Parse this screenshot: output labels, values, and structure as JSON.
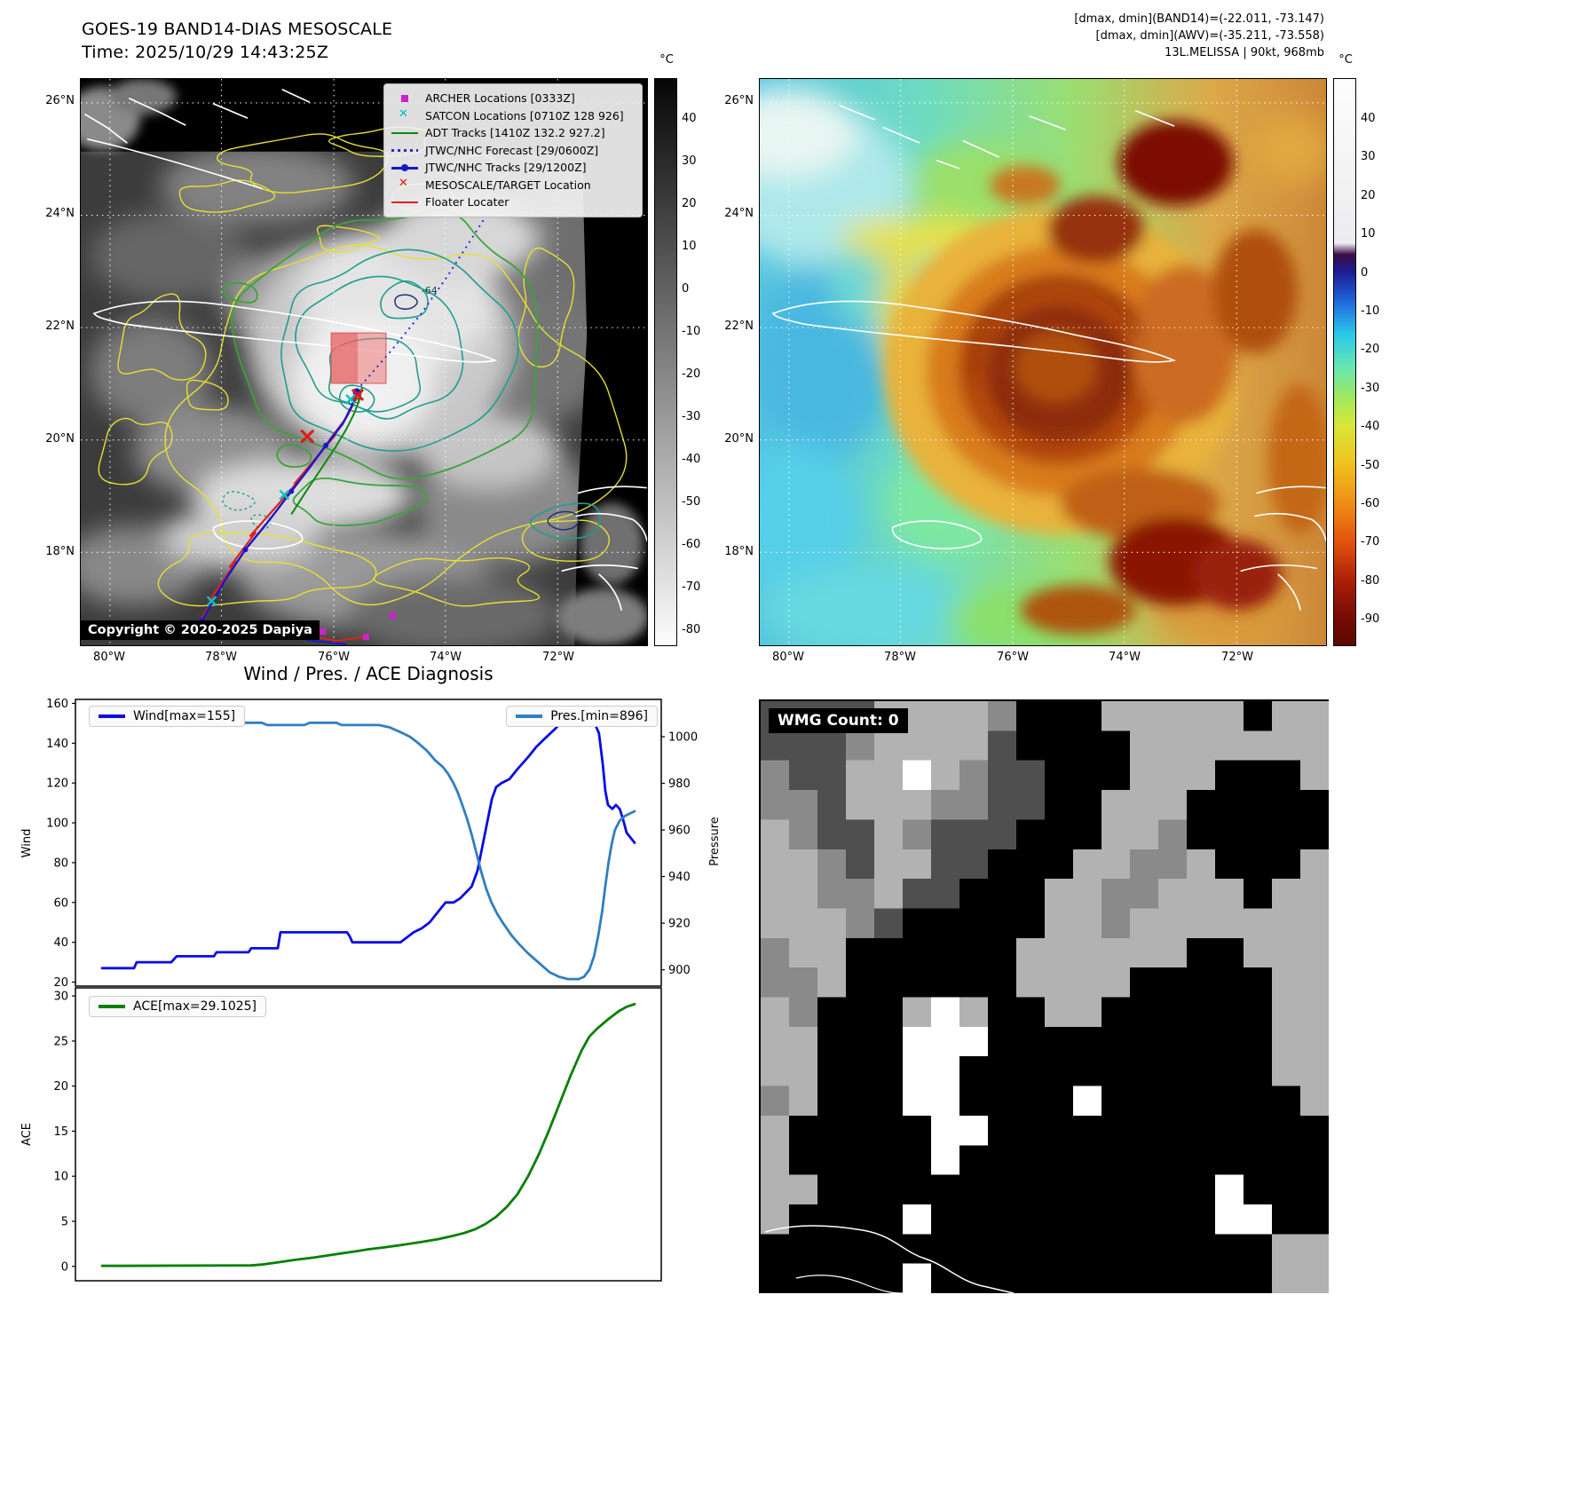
{
  "panel1": {
    "title": "GOES-19 BAND14-DIAS MESOSCALE",
    "subtitle": "Time: 2025/10/29 14:43:25Z",
    "copyright": "Copyright © 2020-2025 Dapiya",
    "colorbar_unit": "°C",
    "colorbar_ticks": [
      40,
      30,
      20,
      10,
      0,
      -10,
      -20,
      -30,
      -40,
      -50,
      -60,
      -70,
      -80
    ],
    "lat_labels": [
      "26°N",
      "24°N",
      "22°N",
      "20°N",
      "18°N"
    ],
    "lon_labels": [
      "80°W",
      "78°W",
      "76°W",
      "74°W",
      "72°W"
    ],
    "contour_label": "-64",
    "legend": [
      {
        "label": "ARCHER Locations [0333Z]",
        "marker": "magenta-square"
      },
      {
        "label": "SATCON Locations [0710Z 128 926]",
        "marker": "cyan-x"
      },
      {
        "label": "ADT Tracks [1410Z 132.2 927.2]",
        "marker": "green-line"
      },
      {
        "label": "JTWC/NHC Forecast [29/0600Z]",
        "marker": "blue-dotted"
      },
      {
        "label": "JTWC/NHC Tracks [29/1200Z]",
        "marker": "blue-line-dot"
      },
      {
        "label": "MESOSCALE/TARGET Location",
        "marker": "red-x"
      },
      {
        "label": "Floater Locater",
        "marker": "red-line"
      }
    ]
  },
  "panel2": {
    "header_line1": "[dmax, dmin](BAND14)=(-22.011, -73.147)",
    "header_line2": "[dmax, dmin](AWV)=(-35.211, -73.558)",
    "header_line3": "13L.MELISSA | 90kt, 968mb",
    "colorbar_unit": "°C",
    "colorbar_ticks": [
      40,
      30,
      20,
      10,
      0,
      -10,
      -20,
      -30,
      -40,
      -50,
      -60,
      -70,
      -80,
      -90
    ],
    "lat_labels": [
      "26°N",
      "24°N",
      "22°N",
      "20°N",
      "18°N"
    ],
    "lon_labels": [
      "80°W",
      "78°W",
      "76°W",
      "74°W",
      "72°W"
    ]
  },
  "charts": {
    "title": "Wind / Pres. / ACE Diagnosis"
  },
  "chart_data": [
    {
      "type": "line",
      "title": "Wind / Pres. / ACE Diagnosis",
      "ylabel_left": "Wind",
      "ylabel_right": "Pressure",
      "ylim_left": [
        18,
        162
      ],
      "ylim_right": [
        893,
        1016
      ],
      "yticks_left": [
        160,
        140,
        120,
        100,
        80,
        60,
        40,
        20
      ],
      "yticks_right": [
        1000,
        980,
        960,
        940,
        920,
        900
      ],
      "xlim": [
        -0.05,
        1.05
      ],
      "grid": false,
      "legend_position": "upper-left / upper-right",
      "series": [
        {
          "name": "Wind[max=155]",
          "color": "#0a0ae6",
          "axis": "left",
          "points": [
            [
              0,
              27
            ],
            [
              0.06,
              27
            ],
            [
              0.065,
              30
            ],
            [
              0.13,
              30
            ],
            [
              0.14,
              33
            ],
            [
              0.21,
              33
            ],
            [
              0.215,
              35
            ],
            [
              0.275,
              35
            ],
            [
              0.28,
              37
            ],
            [
              0.33,
              37
            ],
            [
              0.335,
              45
            ],
            [
              0.46,
              45
            ],
            [
              0.465,
              43
            ],
            [
              0.47,
              40
            ],
            [
              0.56,
              40
            ],
            [
              0.57,
              42
            ],
            [
              0.585,
              45
            ],
            [
              0.6,
              47
            ],
            [
              0.615,
              50
            ],
            [
              0.63,
              55
            ],
            [
              0.645,
              60
            ],
            [
              0.66,
              60
            ],
            [
              0.672,
              62
            ],
            [
              0.683,
              65
            ],
            [
              0.694,
              68
            ],
            [
              0.705,
              76
            ],
            [
              0.714,
              88
            ],
            [
              0.723,
              100
            ],
            [
              0.732,
              112
            ],
            [
              0.74,
              118
            ],
            [
              0.75,
              120
            ],
            [
              0.765,
              122
            ],
            [
              0.78,
              127
            ],
            [
              0.8,
              133
            ],
            [
              0.815,
              138
            ],
            [
              0.83,
              142
            ],
            [
              0.85,
              147
            ],
            [
              0.868,
              152
            ],
            [
              0.885,
              155
            ],
            [
              0.9,
              155
            ],
            [
              0.912,
              152
            ],
            [
              0.925,
              150
            ],
            [
              0.933,
              145
            ],
            [
              0.94,
              130
            ],
            [
              0.945,
              116
            ],
            [
              0.95,
              109
            ],
            [
              0.958,
              107
            ],
            [
              0.965,
              109
            ],
            [
              0.972,
              107
            ],
            [
              0.978,
              102
            ],
            [
              0.985,
              95
            ],
            [
              1,
              90
            ]
          ]
        },
        {
          "name": "Pres.[min=896]",
          "color": "#2f7fc1",
          "axis": "right",
          "points": [
            [
              0,
              1009
            ],
            [
              0.1,
              1009
            ],
            [
              0.105,
              1008
            ],
            [
              0.22,
              1008
            ],
            [
              0.225,
              1006
            ],
            [
              0.3,
              1006
            ],
            [
              0.31,
              1005
            ],
            [
              0.38,
              1005
            ],
            [
              0.39,
              1006
            ],
            [
              0.44,
              1006
            ],
            [
              0.45,
              1005
            ],
            [
              0.52,
              1005
            ],
            [
              0.54,
              1004
            ],
            [
              0.56,
              1002
            ],
            [
              0.578,
              1000
            ],
            [
              0.595,
              997
            ],
            [
              0.61,
              994
            ],
            [
              0.625,
              990
            ],
            [
              0.64,
              987
            ],
            [
              0.65,
              984
            ],
            [
              0.66,
              980
            ],
            [
              0.668,
              976
            ],
            [
              0.676,
              971
            ],
            [
              0.685,
              965
            ],
            [
              0.694,
              958
            ],
            [
              0.703,
              950
            ],
            [
              0.712,
              942
            ],
            [
              0.721,
              935
            ],
            [
              0.731,
              929
            ],
            [
              0.742,
              924
            ],
            [
              0.753,
              920
            ],
            [
              0.768,
              915
            ],
            [
              0.783,
              911
            ],
            [
              0.8,
              907
            ],
            [
              0.82,
              903
            ],
            [
              0.84,
              899
            ],
            [
              0.858,
              897
            ],
            [
              0.875,
              896
            ],
            [
              0.895,
              896
            ],
            [
              0.905,
              897
            ],
            [
              0.915,
              900
            ],
            [
              0.924,
              906
            ],
            [
              0.932,
              915
            ],
            [
              0.939,
              925
            ],
            [
              0.945,
              936
            ],
            [
              0.951,
              946
            ],
            [
              0.957,
              954
            ],
            [
              0.963,
              960
            ],
            [
              0.972,
              964
            ],
            [
              0.982,
              966
            ],
            [
              1,
              968
            ]
          ]
        }
      ]
    },
    {
      "type": "line",
      "ylabel_left": "ACE",
      "ylim_left": [
        -1.6,
        30.9
      ],
      "yticks_left": [
        30,
        25,
        20,
        15,
        10,
        5,
        0
      ],
      "xlim": [
        -0.05,
        1.05
      ],
      "grid": false,
      "series": [
        {
          "name": "ACE[max=29.1025]",
          "color": "#008000",
          "axis": "left",
          "points": [
            [
              0,
              0.05
            ],
            [
              0.28,
              0.1
            ],
            [
              0.3,
              0.2
            ],
            [
              0.33,
              0.45
            ],
            [
              0.36,
              0.7
            ],
            [
              0.4,
              1
            ],
            [
              0.44,
              1.35
            ],
            [
              0.48,
              1.7
            ],
            [
              0.5,
              1.9
            ],
            [
              0.53,
              2.1
            ],
            [
              0.56,
              2.35
            ],
            [
              0.6,
              2.7
            ],
            [
              0.63,
              3
            ],
            [
              0.66,
              3.4
            ],
            [
              0.68,
              3.7
            ],
            [
              0.7,
              4.1
            ],
            [
              0.72,
              4.7
            ],
            [
              0.74,
              5.5
            ],
            [
              0.76,
              6.6
            ],
            [
              0.78,
              8
            ],
            [
              0.8,
              10
            ],
            [
              0.82,
              12.4
            ],
            [
              0.84,
              15.2
            ],
            [
              0.86,
              18.2
            ],
            [
              0.88,
              21.2
            ],
            [
              0.9,
              23.9
            ],
            [
              0.915,
              25.5
            ],
            [
              0.93,
              26.4
            ],
            [
              0.95,
              27.4
            ],
            [
              0.97,
              28.3
            ],
            [
              0.985,
              28.8
            ],
            [
              1,
              29.1
            ]
          ]
        }
      ]
    }
  ],
  "panel4": {
    "wmg_label": "WMG Count: 0",
    "palette": {
      "b": "#000000",
      "d": "#4f4f4f",
      "m": "#8a8a8a",
      "l": "#b2b2b2",
      "w": "#ffffff"
    },
    "grid": [
      "ddddllllmbbblllllbll",
      "dddmlllldbbbblllllll",
      "mddllwlmddbbblllbbbl",
      "mmdlllmmddbblllbbbbb",
      "lmddlmdddbbbllmbbbbb",
      "llmdllddbbbllmmlbbbl",
      "llmmlddbbbllmmlllbll",
      "lllmdbbbbbllmlllllll",
      "mllbbbbbbllllllbblll",
      "mmlbbbbbbllllbbbbbll",
      "lmbbblwlbbllbbbbbbll",
      "llbbbwwwbbbbbbbbbbll",
      "llbbbwwbbbbbbbbbbbll",
      "mlbbbwwbbbbwbbbbbbbl",
      "lbbbbbwwbbbbbbbbbbbb",
      "lbbbbbwbbbbbbbbbbbbb",
      "llbbbbbbbbbbbbbbwbbb",
      "lbbbbwbbbbbbbbbbwwbb",
      "bbbbbbbbbbbbbbbbbbll",
      "bbbbbwbbbbbbbbbbbbll"
    ]
  }
}
